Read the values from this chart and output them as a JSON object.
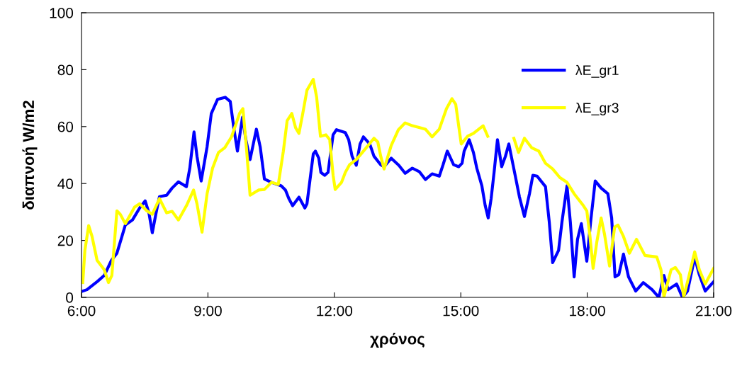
{
  "chart_data": {
    "type": "line",
    "xlabel": "χρόνος",
    "ylabel": "διαπνοή W/m2",
    "xlim": [
      6,
      21
    ],
    "xticks": [
      {
        "value": 6,
        "label": "6:00"
      },
      {
        "value": 9,
        "label": "9:00"
      },
      {
        "value": 12,
        "label": "12:00"
      },
      {
        "value": 15,
        "label": "15:00"
      },
      {
        "value": 18,
        "label": "18:00"
      },
      {
        "value": 21,
        "label": "21:00"
      }
    ],
    "ylim": [
      0,
      100
    ],
    "yticks": [
      0,
      20,
      40,
      60,
      80,
      100
    ],
    "grid": false,
    "legend": "top right",
    "marker": "none",
    "line_style": "solid",
    "series": [
      {
        "name": "λE_gr1",
        "color": "#0000ff",
        "x": [
          6.03,
          6.13,
          6.37,
          6.54,
          6.71,
          6.84,
          6.96,
          7.04,
          7.21,
          7.38,
          7.51,
          7.6,
          7.68,
          7.77,
          7.85,
          8.02,
          8.15,
          8.3,
          8.49,
          8.57,
          8.67,
          8.74,
          8.84,
          8.98,
          9.08,
          9.23,
          9.41,
          9.53,
          9.62,
          9.7,
          9.82,
          9.9,
          10.0,
          10.15,
          10.24,
          10.34,
          10.51,
          10.74,
          10.84,
          10.92,
          11.01,
          11.16,
          11.3,
          11.35,
          11.5,
          11.55,
          11.63,
          11.68,
          11.77,
          11.85,
          11.97,
          12.05,
          12.26,
          12.34,
          12.42,
          12.52,
          12.61,
          12.69,
          12.84,
          12.94,
          13.1,
          13.18,
          13.35,
          13.53,
          13.68,
          13.85,
          14.02,
          14.16,
          14.32,
          14.49,
          14.58,
          14.68,
          14.83,
          14.95,
          15.03,
          15.08,
          15.2,
          15.3,
          15.38,
          15.5,
          15.58,
          15.65,
          15.72,
          15.79,
          15.87,
          15.97,
          16.06,
          16.14,
          16.29,
          16.39,
          16.51,
          16.63,
          16.71,
          16.81,
          17.01,
          17.1,
          17.18,
          17.32,
          17.4,
          17.52,
          17.6,
          17.69,
          17.77,
          17.86,
          17.99,
          18.08,
          18.19,
          18.33,
          18.49,
          18.58,
          18.66,
          18.75,
          18.86,
          18.98,
          19.15,
          19.33,
          19.54,
          19.7,
          19.82,
          19.92,
          20.12,
          20.26,
          20.38,
          20.55,
          20.66,
          20.8,
          21.0
        ],
        "values": [
          2.2,
          2.7,
          5.5,
          7.7,
          13,
          15.5,
          21.4,
          25.4,
          27.2,
          31.4,
          33.9,
          29.7,
          22.7,
          29.7,
          35.4,
          35.9,
          38.4,
          40.6,
          38.9,
          45.4,
          58.1,
          49.6,
          40.9,
          52.9,
          64.6,
          69.6,
          70.3,
          68.8,
          58.9,
          51.4,
          63.3,
          55.4,
          48.4,
          59.1,
          52.9,
          41.6,
          40.4,
          39.2,
          37.7,
          34.7,
          32.2,
          35.2,
          31.4,
          32.9,
          50.4,
          51.4,
          48.9,
          43.9,
          42.9,
          43.9,
          57.1,
          58.9,
          57.9,
          55.4,
          49.6,
          46.4,
          53.9,
          56.4,
          53.9,
          49.6,
          46.6,
          45.9,
          48.9,
          46.4,
          43.6,
          45.4,
          44.1,
          41.4,
          43.4,
          42.6,
          46.6,
          51.4,
          46.6,
          45.9,
          47.1,
          51.4,
          55.4,
          50.9,
          45.4,
          39.2,
          32.2,
          27.9,
          34.7,
          43.9,
          55.4,
          45.9,
          49.6,
          53.9,
          42.9,
          35.4,
          28.4,
          36.4,
          42.9,
          42.6,
          38.9,
          26.4,
          12.2,
          16.5,
          26.4,
          39.2,
          26.4,
          7.2,
          20.4,
          25.9,
          12.7,
          26.4,
          40.9,
          38.4,
          36.4,
          27.9,
          7.2,
          8,
          15.2,
          7.2,
          2.2,
          5.2,
          2.7,
          0,
          7.7,
          2.7,
          4.7,
          0,
          2.2,
          14,
          8,
          2.2,
          5.5
        ]
      },
      {
        "name": "λE_gr3",
        "color": "#ffff00",
        "x": [
          6.03,
          6.08,
          6.17,
          6.25,
          6.37,
          6.54,
          6.64,
          6.72,
          6.84,
          6.92,
          7.04,
          7.26,
          7.38,
          7.55,
          7.68,
          7.85,
          8.02,
          8.15,
          8.3,
          8.49,
          8.66,
          8.74,
          8.86,
          8.98,
          9.11,
          9.25,
          9.4,
          9.56,
          9.75,
          9.83,
          9.92,
          10.0,
          10.2,
          10.34,
          10.51,
          10.67,
          10.79,
          10.88,
          10.99,
          11.08,
          11.16,
          11.25,
          11.35,
          11.5,
          11.58,
          11.67,
          11.8,
          11.89,
          11.97,
          12.02,
          12.17,
          12.26,
          12.36,
          12.52,
          12.73,
          12.94,
          13.03,
          13.1,
          13.18,
          13.35,
          13.52,
          13.68,
          13.85,
          14.04,
          14.16,
          14.32,
          14.49,
          14.66,
          14.79,
          14.88,
          14.95,
          15.01,
          15.16,
          15.3,
          15.53,
          15.64,
          15.9,
          16.26,
          16.37,
          16.51,
          16.68,
          16.85,
          17.01,
          17.18,
          17.35,
          17.52,
          17.69,
          17.91,
          17.99,
          18.06,
          18.14,
          18.23,
          18.33,
          18.41,
          18.53,
          18.65,
          18.73,
          18.86,
          19.0,
          19.17,
          19.37,
          19.65,
          19.75,
          19.82,
          19.99,
          20.09,
          20.21,
          20.29,
          20.41,
          20.55,
          20.66,
          20.8,
          21.0
        ],
        "values": [
          5.2,
          16.5,
          25.2,
          21.4,
          13,
          9.7,
          5.2,
          7.7,
          30.4,
          29.2,
          25.9,
          31.7,
          32.9,
          30.4,
          29.2,
          34.7,
          29.7,
          30.2,
          27.2,
          32.2,
          37.7,
          32.9,
          22.9,
          36.4,
          45.4,
          50.9,
          52.6,
          56.4,
          64.6,
          66.3,
          51.4,
          35.9,
          37.7,
          37.9,
          40.4,
          39.7,
          51.4,
          62.1,
          64.6,
          59.6,
          57.6,
          64.6,
          72.8,
          76.6,
          70.3,
          56.6,
          57.1,
          55.4,
          42.9,
          37.9,
          40.4,
          43.9,
          46.6,
          48.4,
          52.1,
          55.9,
          54.6,
          49.6,
          45.1,
          53.4,
          58.9,
          61.3,
          60.3,
          59.6,
          59.1,
          56.4,
          59.1,
          66.3,
          69.8,
          67.8,
          60.3,
          53.9,
          56.6,
          57.6,
          60.3,
          56.6,
          null,
          55.9,
          50.9,
          55.9,
          52.6,
          51.4,
          47.1,
          45.1,
          42.1,
          40.4,
          36.4,
          32.2,
          30.4,
          22.2,
          10.2,
          19.7,
          27.9,
          22.2,
          11,
          24.7,
          25.4,
          21.4,
          15.5,
          20.4,
          14.7,
          14.2,
          9.7,
          0.2,
          9.7,
          10.5,
          8,
          0.2,
          7.2,
          16,
          9.7,
          4.7,
          10.2
        ]
      }
    ]
  }
}
